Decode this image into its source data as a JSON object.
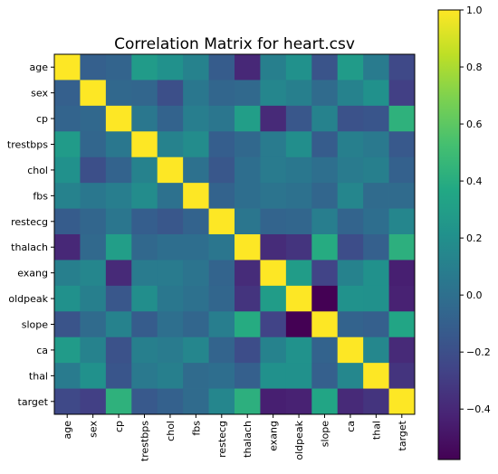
{
  "chart_data": {
    "type": "heatmap",
    "title": "Correlation Matrix for heart.csv",
    "labels": [
      "age",
      "sex",
      "cp",
      "trestbps",
      "chol",
      "fbs",
      "restecg",
      "thalach",
      "exang",
      "oldpeak",
      "slope",
      "ca",
      "thal",
      "target"
    ],
    "colormap": "viridis",
    "color_range": [
      -0.577,
      1.0
    ],
    "colorbar_ticks": [
      -0.4,
      -0.2,
      0.0,
      0.2,
      0.4,
      0.6,
      0.8,
      1.0
    ],
    "colorbar_tick_labels": [
      "−0.4",
      "−0.2",
      "0.0",
      "0.2",
      "0.4",
      "0.6",
      "0.8",
      "1.0"
    ],
    "grid": false,
    "values": [
      [
        1.0,
        -0.1,
        -0.07,
        0.28,
        0.21,
        0.12,
        -0.12,
        -0.4,
        0.1,
        0.21,
        -0.17,
        0.28,
        0.07,
        -0.23
      ],
      [
        -0.1,
        1.0,
        -0.05,
        -0.06,
        -0.2,
        0.05,
        -0.06,
        -0.04,
        0.14,
        0.1,
        -0.03,
        0.12,
        0.21,
        -0.28
      ],
      [
        -0.07,
        -0.05,
        1.0,
        0.05,
        -0.08,
        0.09,
        0.04,
        0.3,
        -0.39,
        -0.15,
        0.12,
        -0.18,
        -0.16,
        0.43
      ],
      [
        0.28,
        -0.06,
        0.05,
        1.0,
        0.12,
        0.18,
        -0.11,
        -0.05,
        0.07,
        0.19,
        -0.12,
        0.1,
        0.06,
        -0.14
      ],
      [
        0.21,
        -0.2,
        -0.08,
        0.12,
        1.0,
        0.01,
        -0.15,
        -0.01,
        0.07,
        0.05,
        -0.0,
        0.07,
        0.1,
        -0.09
      ],
      [
        0.12,
        0.05,
        0.09,
        0.18,
        0.01,
        1.0,
        -0.08,
        -0.01,
        0.03,
        0.01,
        -0.06,
        0.14,
        -0.03,
        -0.03
      ],
      [
        -0.12,
        -0.06,
        0.04,
        -0.11,
        -0.15,
        -0.08,
        1.0,
        0.04,
        -0.07,
        -0.06,
        0.09,
        -0.07,
        -0.01,
        0.14
      ],
      [
        -0.4,
        -0.04,
        0.3,
        -0.05,
        -0.01,
        -0.01,
        0.04,
        1.0,
        -0.38,
        -0.34,
        0.39,
        -0.21,
        -0.1,
        0.42
      ],
      [
        0.1,
        0.14,
        -0.39,
        0.07,
        0.07,
        0.03,
        -0.07,
        -0.38,
        1.0,
        0.29,
        -0.26,
        0.12,
        0.21,
        -0.44
      ],
      [
        0.21,
        0.1,
        -0.15,
        0.19,
        0.05,
        0.01,
        -0.06,
        -0.34,
        0.29,
        1.0,
        -0.58,
        0.22,
        0.21,
        -0.43
      ],
      [
        -0.17,
        -0.03,
        0.12,
        -0.12,
        -0.0,
        -0.06,
        0.09,
        0.39,
        -0.26,
        -0.58,
        1.0,
        -0.08,
        -0.1,
        0.35
      ],
      [
        0.28,
        0.12,
        -0.18,
        0.1,
        0.07,
        0.14,
        -0.07,
        -0.21,
        0.12,
        0.22,
        -0.08,
        1.0,
        0.15,
        -0.39
      ],
      [
        0.07,
        0.21,
        -0.16,
        0.06,
        0.1,
        -0.03,
        -0.01,
        -0.1,
        0.21,
        0.21,
        -0.1,
        0.15,
        1.0,
        -0.34
      ],
      [
        -0.23,
        -0.28,
        0.43,
        -0.14,
        -0.09,
        -0.03,
        0.14,
        0.42,
        -0.44,
        -0.43,
        0.35,
        -0.39,
        -0.34,
        1.0
      ]
    ]
  }
}
